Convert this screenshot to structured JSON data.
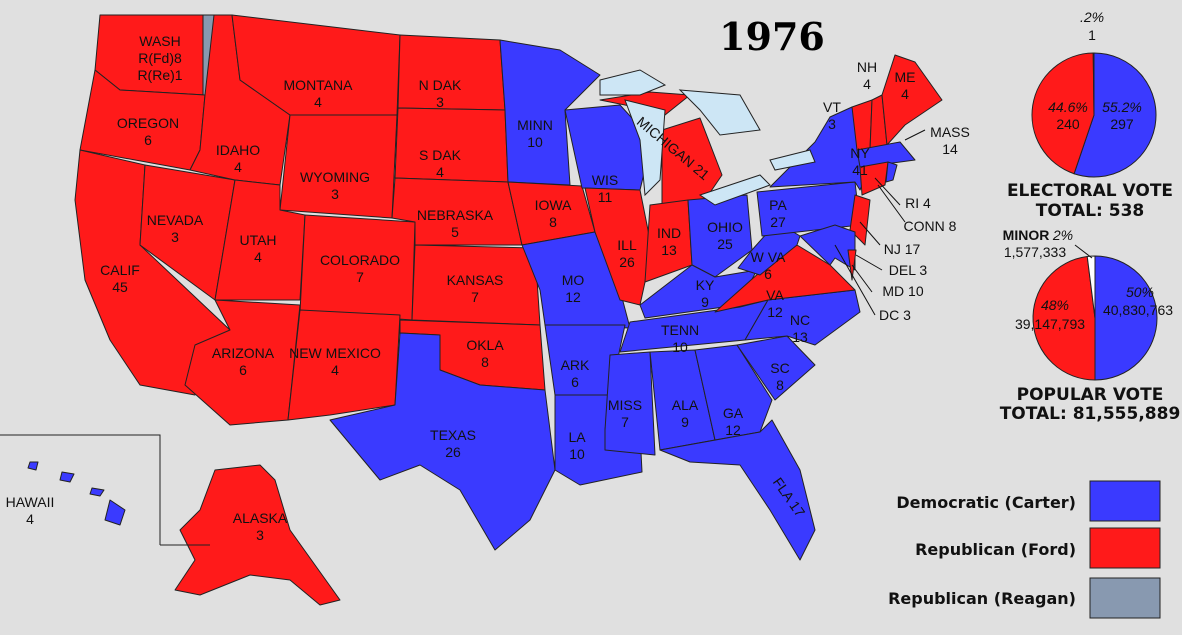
{
  "title": "1976",
  "colors": {
    "democratic": "#3a3aff",
    "republican_ford": "#ff1a1a",
    "republican_reagan": "#8899b0",
    "lakes": "#cde6f5",
    "background": "#e0e0e0"
  },
  "states": {
    "WA": {
      "name": "WASH",
      "line2": "R(Fd)8",
      "line3": "R(Re)1"
    },
    "OR": {
      "name": "OREGON",
      "ev": "6"
    },
    "CA": {
      "name": "CALIF",
      "ev": "45"
    },
    "NV": {
      "name": "NEVADA",
      "ev": "3"
    },
    "ID": {
      "name": "IDAHO",
      "ev": "4"
    },
    "MT": {
      "name": "MONTANA",
      "ev": "4"
    },
    "WY": {
      "name": "WYOMING",
      "ev": "3"
    },
    "UT": {
      "name": "UTAH",
      "ev": "4"
    },
    "CO": {
      "name": "COLORADO",
      "ev": "7"
    },
    "AZ": {
      "name": "ARIZONA",
      "ev": "6"
    },
    "NM": {
      "name": "NEW MEXICO",
      "ev": "4"
    },
    "ND": {
      "name": "N DAK",
      "ev": "3"
    },
    "SD": {
      "name": "S DAK",
      "ev": "4"
    },
    "NE": {
      "name": "NEBRASKA",
      "ev": "5"
    },
    "KS": {
      "name": "KANSAS",
      "ev": "7"
    },
    "OK": {
      "name": "OKLA",
      "ev": "8"
    },
    "TX": {
      "name": "TEXAS",
      "ev": "26"
    },
    "MN": {
      "name": "MINN",
      "ev": "10"
    },
    "IA": {
      "name": "IOWA",
      "ev": "8"
    },
    "MO": {
      "name": "MO",
      "ev": "12"
    },
    "AR": {
      "name": "ARK",
      "ev": "6"
    },
    "LA": {
      "name": "LA",
      "ev": "10"
    },
    "WI": {
      "name": "WIS",
      "ev": "11"
    },
    "IL": {
      "name": "ILL",
      "ev": "26"
    },
    "MI": {
      "name": "MICHIGAN 21"
    },
    "IN": {
      "name": "IND",
      "ev": "13"
    },
    "OH": {
      "name": "OHIO",
      "ev": "25"
    },
    "KY": {
      "name": "KY",
      "ev": "9"
    },
    "TN": {
      "name": "TENN",
      "ev": "10"
    },
    "MS": {
      "name": "MISS",
      "ev": "7"
    },
    "AL": {
      "name": "ALA",
      "ev": "9"
    },
    "GA": {
      "name": "GA",
      "ev": "12"
    },
    "FL": {
      "name": "FLA 17"
    },
    "SC": {
      "name": "SC",
      "ev": "8"
    },
    "NC": {
      "name": "NC",
      "ev": "13"
    },
    "VA": {
      "name": "VA",
      "ev": "12"
    },
    "WV": {
      "name": "W VA",
      "ev": "6"
    },
    "PA": {
      "name": "PA",
      "ev": "27"
    },
    "NY": {
      "name": "NY",
      "ev": "41"
    },
    "VT": {
      "name": "VT",
      "ev": "3"
    },
    "NH": {
      "name": "NH",
      "ev": "4"
    },
    "ME": {
      "name": "ME",
      "ev": "4"
    },
    "MA": {
      "name": "MASS",
      "ev": "14"
    },
    "RI": {
      "name": "RI 4"
    },
    "CT": {
      "name": "CONN 8"
    },
    "NJ": {
      "name": "NJ 17"
    },
    "DE": {
      "name": "DEL 3"
    },
    "MD": {
      "name": "MD 10"
    },
    "DC": {
      "name": "DC 3"
    },
    "HI": {
      "name": "HAWAII",
      "ev": "4"
    },
    "AK": {
      "name": "ALASKA",
      "ev": "3"
    }
  },
  "electoral_pie": {
    "caption": "ELECTORAL VOTE",
    "total": "TOTAL:  538",
    "slices": [
      {
        "party": "democratic",
        "pct": "55.2%",
        "value": "297",
        "fraction": 0.552
      },
      {
        "party": "republican_ford",
        "pct": "44.6%",
        "value": "240",
        "fraction": 0.446
      },
      {
        "party": "republican_reagan",
        "pct": ".2%",
        "value": "1",
        "fraction": 0.002
      }
    ]
  },
  "popular_pie": {
    "caption": "POPULAR VOTE",
    "total": "TOTAL:  81,555,889",
    "slices": [
      {
        "party": "democratic",
        "pct": "50%",
        "value": "40,830,763",
        "fraction": 0.5
      },
      {
        "party": "republican_ford",
        "pct": "48%",
        "value": "39,147,793",
        "fraction": 0.48
      },
      {
        "party": "minor",
        "label": "MINOR",
        "pct": "2%",
        "value": "1,577,333",
        "fraction": 0.02
      }
    ]
  },
  "legend": [
    {
      "label": "Democratic (Carter)",
      "color": "#3a3aff"
    },
    {
      "label": "Republican (Ford)",
      "color": "#ff1a1a"
    },
    {
      "label": "Republican (Reagan)",
      "color": "#8899b0"
    }
  ]
}
